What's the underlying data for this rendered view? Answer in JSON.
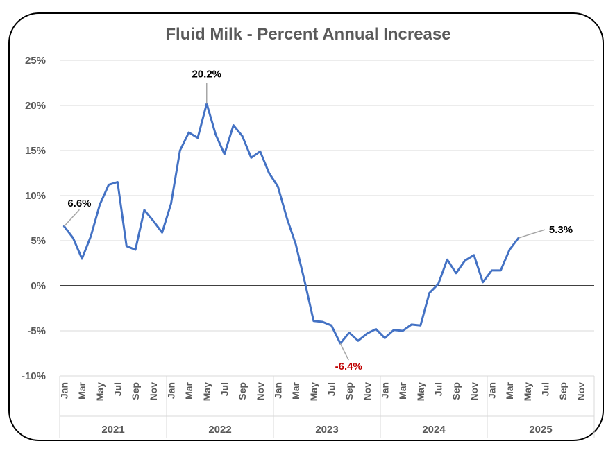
{
  "chart_data": {
    "type": "line",
    "title": "Fluid Milk - Percent Annual Increase",
    "xlabel": "",
    "ylabel": "",
    "ylim": [
      -10,
      25
    ],
    "yticks": [
      "25%",
      "20%",
      "15%",
      "10%",
      "5%",
      "0%",
      "-5%",
      "-10%"
    ],
    "ytick_values": [
      25,
      20,
      15,
      10,
      5,
      0,
      -5,
      -10
    ],
    "grid": true,
    "legend": "none",
    "month_labels": [
      "Jan",
      "Mar",
      "May",
      "Jul",
      "Sep",
      "Nov"
    ],
    "years": [
      "2021",
      "2022",
      "2023",
      "2024",
      "2025"
    ],
    "line_color": "#4472C4",
    "series": [
      {
        "values": [
          6.6,
          5.3,
          3.0,
          5.5,
          9.0,
          11.2,
          11.5,
          4.4,
          4.0,
          8.4,
          7.2,
          5.9,
          9.1,
          15.0,
          17.0,
          16.4,
          20.2,
          16.8,
          14.6,
          17.8,
          16.6,
          14.2,
          14.9,
          12.5,
          11.0,
          7.5,
          4.6,
          0.5,
          -3.9,
          -4.0,
          -4.4,
          -6.4,
          -5.2,
          -6.1,
          -5.3,
          -4.8,
          -5.8,
          -4.9,
          -5.0,
          -4.3,
          -4.4,
          -0.8,
          0.2,
          2.9,
          1.4,
          2.8,
          3.4,
          0.4,
          1.7,
          1.7,
          4.0,
          5.3
        ]
      }
    ],
    "annotations": [
      {
        "index": 0,
        "label": "6.6%",
        "color": "#000000"
      },
      {
        "index": 16,
        "label": "20.2%",
        "color": "#000000"
      },
      {
        "index": 31,
        "label": "-6.4%",
        "color": "#C00000"
      },
      {
        "index": 51,
        "label": "5.3%",
        "color": "#000000"
      }
    ]
  }
}
